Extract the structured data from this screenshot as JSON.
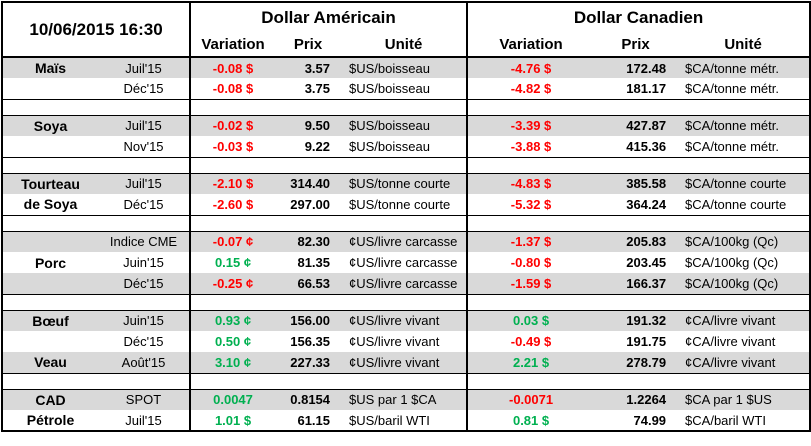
{
  "colors": {
    "negative": "#FF0000",
    "positive": "#00B050",
    "row_shade": "#D9D9D9",
    "border": "#000000"
  },
  "header": {
    "datetime": "10/06/2015 16:30",
    "us_title": "Dollar Américain",
    "ca_title": "Dollar Canadien",
    "columns": {
      "variation": "Variation",
      "prix": "Prix",
      "unite": "Unité"
    }
  },
  "sections": [
    {
      "rows": [
        {
          "name": "Maïs",
          "month": "Juil'15",
          "shade": true,
          "us": {
            "variation": "-0.08 $",
            "trend": "neg",
            "prix": "3.57",
            "unite": "$US/boisseau"
          },
          "ca": {
            "variation": "-4.76 $",
            "trend": "neg",
            "prix": "172.48",
            "unite": "$CA/tonne métr."
          }
        },
        {
          "name": "",
          "month": "Déc'15",
          "shade": false,
          "us": {
            "variation": "-0.08 $",
            "trend": "neg",
            "prix": "3.75",
            "unite": "$US/boisseau"
          },
          "ca": {
            "variation": "-4.82 $",
            "trend": "neg",
            "prix": "181.17",
            "unite": "$CA/tonne métr."
          }
        }
      ]
    },
    {
      "rows": [
        {
          "name": "Soya",
          "month": "Juil'15",
          "shade": true,
          "us": {
            "variation": "-0.02 $",
            "trend": "neg",
            "prix": "9.50",
            "unite": "$US/boisseau"
          },
          "ca": {
            "variation": "-3.39 $",
            "trend": "neg",
            "prix": "427.87",
            "unite": "$CA/tonne métr."
          }
        },
        {
          "name": "",
          "month": "Nov'15",
          "shade": false,
          "us": {
            "variation": "-0.03 $",
            "trend": "neg",
            "prix": "9.22",
            "unite": "$US/boisseau"
          },
          "ca": {
            "variation": "-3.88 $",
            "trend": "neg",
            "prix": "415.36",
            "unite": "$CA/tonne métr."
          }
        }
      ]
    },
    {
      "rows": [
        {
          "name": "Tourteau",
          "month": "Juil'15",
          "shade": true,
          "us": {
            "variation": "-2.10 $",
            "trend": "neg",
            "prix": "314.40",
            "unite": "$US/tonne courte"
          },
          "ca": {
            "variation": "-4.83 $",
            "trend": "neg",
            "prix": "385.58",
            "unite": "$CA/tonne courte"
          }
        },
        {
          "name": "de Soya",
          "month": "Déc'15",
          "shade": false,
          "us": {
            "variation": "-2.60 $",
            "trend": "neg",
            "prix": "297.00",
            "unite": "$US/tonne courte"
          },
          "ca": {
            "variation": "-5.32 $",
            "trend": "neg",
            "prix": "364.24",
            "unite": "$CA/tonne courte"
          }
        }
      ]
    },
    {
      "rows": [
        {
          "name": "",
          "month": "Indice CME",
          "shade": true,
          "us": {
            "variation": "-0.07 ¢",
            "trend": "neg",
            "prix": "82.30",
            "unite": "¢US/livre carcasse"
          },
          "ca": {
            "variation": "-1.37 $",
            "trend": "neg",
            "prix": "205.83",
            "unite": "$CA/100kg (Qc)"
          }
        },
        {
          "name": "Porc",
          "month": "Juin'15",
          "shade": false,
          "us": {
            "variation": "0.15 ¢",
            "trend": "pos",
            "prix": "81.35",
            "unite": "¢US/livre carcasse"
          },
          "ca": {
            "variation": "-0.80 $",
            "trend": "neg",
            "prix": "203.45",
            "unite": "$CA/100kg (Qc)"
          }
        },
        {
          "name": "",
          "month": "Déc'15",
          "shade": true,
          "us": {
            "variation": "-0.25 ¢",
            "trend": "neg",
            "prix": "66.53",
            "unite": "¢US/livre carcasse"
          },
          "ca": {
            "variation": "-1.59 $",
            "trend": "neg",
            "prix": "166.37",
            "unite": "$CA/100kg (Qc)"
          }
        }
      ]
    },
    {
      "rows": [
        {
          "name": "Bœuf",
          "month": "Juin'15",
          "shade": true,
          "us": {
            "variation": "0.93 ¢",
            "trend": "pos",
            "prix": "156.00",
            "unite": "¢US/livre vivant"
          },
          "ca": {
            "variation": "0.03 $",
            "trend": "pos",
            "prix": "191.32",
            "unite": "¢CA/livre vivant"
          }
        },
        {
          "name": "",
          "month": "Déc'15",
          "shade": false,
          "us": {
            "variation": "0.50 ¢",
            "trend": "pos",
            "prix": "156.35",
            "unite": "¢US/livre vivant"
          },
          "ca": {
            "variation": "-0.49 $",
            "trend": "neg",
            "prix": "191.75",
            "unite": "¢CA/livre vivant"
          }
        },
        {
          "name": "Veau",
          "month": "Août'15",
          "shade": true,
          "us": {
            "variation": "3.10 ¢",
            "trend": "pos",
            "prix": "227.33",
            "unite": "¢US/livre vivant"
          },
          "ca": {
            "variation": "2.21 $",
            "trend": "pos",
            "prix": "278.79",
            "unite": "¢CA/livre vivant"
          }
        }
      ]
    },
    {
      "rows": [
        {
          "name": "CAD",
          "month": "SPOT",
          "shade": true,
          "us": {
            "variation": "0.0047",
            "trend": "pos",
            "prix": "0.8154",
            "unite": "$US par 1 $CA"
          },
          "ca": {
            "variation": "-0.0071",
            "trend": "neg",
            "prix": "1.2264",
            "unite": "$CA par 1 $US"
          }
        },
        {
          "name": "Pétrole",
          "month": "Juil'15",
          "shade": false,
          "us": {
            "variation": "1.01 $",
            "trend": "pos",
            "prix": "61.15",
            "unite": "$US/baril WTI"
          },
          "ca": {
            "variation": "0.81 $",
            "trend": "pos",
            "prix": "74.99",
            "unite": "$CA/baril WTI"
          }
        }
      ]
    }
  ]
}
